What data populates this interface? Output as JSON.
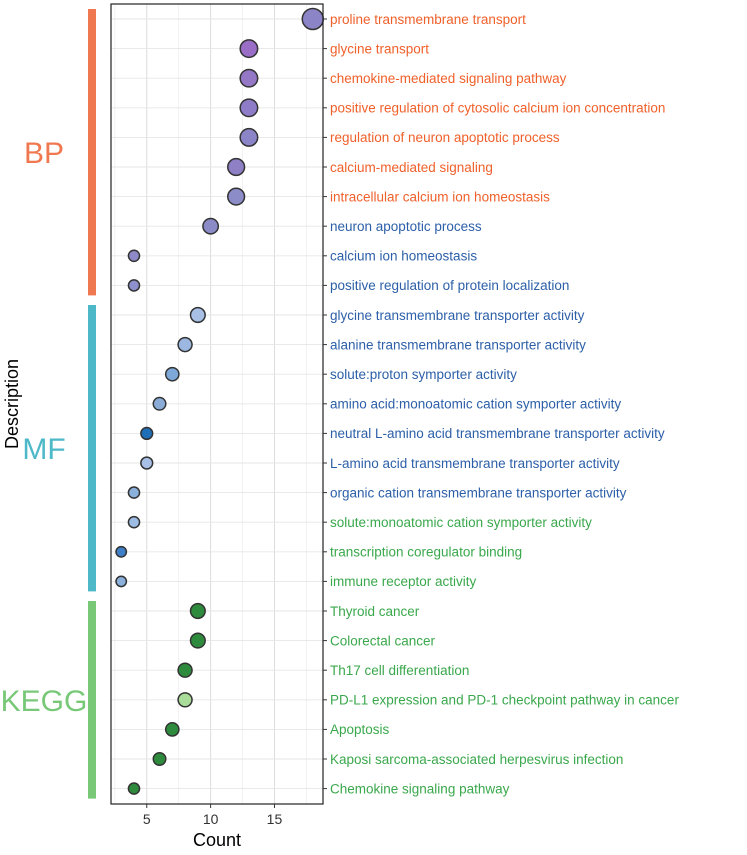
{
  "chart_data": {
    "type": "scatter",
    "title": "",
    "xlabel": "Count",
    "ylabel": "Description",
    "xlim": [
      2.2,
      18.8
    ],
    "xticks": [
      5,
      10,
      15
    ],
    "grid": true,
    "groups": [
      {
        "name": "BP",
        "color": "#f07850",
        "items": [
          {
            "term": "proline transmembrane transport",
            "count": 18,
            "label_color": "#f0602a",
            "point_color": "#8b85c8"
          },
          {
            "term": "glycine transport",
            "count": 13,
            "label_color": "#f0602a",
            "point_color": "#9a6ec6"
          },
          {
            "term": "chemokine-mediated signaling pathway",
            "count": 13,
            "label_color": "#f0602a",
            "point_color": "#9478c6"
          },
          {
            "term": "positive regulation of cytosolic calcium ion concentration",
            "count": 13,
            "label_color": "#f0602a",
            "point_color": "#8f7cc8"
          },
          {
            "term": "regulation of neuron apoptotic process",
            "count": 13,
            "label_color": "#f0602a",
            "point_color": "#8b85c8"
          },
          {
            "term": "calcium-mediated signaling",
            "count": 12,
            "label_color": "#f0602a",
            "point_color": "#8f80c6"
          },
          {
            "term": "intracellular calcium ion homeostasis",
            "count": 12,
            "label_color": "#f0602a",
            "point_color": "#8c8cc8"
          },
          {
            "term": "neuron apoptotic process",
            "count": 10,
            "label_color": "#2c5fa8",
            "point_color": "#8b8bc8"
          },
          {
            "term": "calcium ion homeostasis",
            "count": 4,
            "label_color": "#2c5fa8",
            "point_color": "#8e8ac8"
          },
          {
            "term": "positive regulation of protein localization",
            "count": 4,
            "label_color": "#2c5fa8",
            "point_color": "#8d90cc"
          }
        ]
      },
      {
        "name": "MF",
        "color": "#4cb8c8",
        "items": [
          {
            "term": "glycine transmembrane transporter activity",
            "count": 9,
            "label_color": "#2c5fa8",
            "point_color": "#a8c0e6"
          },
          {
            "term": "alanine transmembrane transporter activity",
            "count": 8,
            "label_color": "#2c5fa8",
            "point_color": "#9cb8e0"
          },
          {
            "term": "solute:proton symporter activity",
            "count": 7,
            "label_color": "#2c5fa8",
            "point_color": "#7ea8d8"
          },
          {
            "term": "amino acid:monoatomic cation symporter activity",
            "count": 6,
            "label_color": "#2c5fa8",
            "point_color": "#8cacd8"
          },
          {
            "term": "neutral L-amino acid transmembrane transporter activity",
            "count": 5,
            "label_color": "#2c5fa8",
            "point_color": "#1f6fb8"
          },
          {
            "term": "L-amino acid transmembrane transporter activity",
            "count": 5,
            "label_color": "#2c5fa8",
            "point_color": "#a8c0e6"
          },
          {
            "term": "organic cation transmembrane transporter activity",
            "count": 4,
            "label_color": "#2c5fa8",
            "point_color": "#8cb0dc"
          },
          {
            "term": "solute:monoatomic cation symporter activity",
            "count": 4,
            "label_color": "#3aa84c",
            "point_color": "#9cbce4"
          },
          {
            "term": "transcription coregulator binding",
            "count": 3,
            "label_color": "#3aa84c",
            "point_color": "#3f7fc8"
          },
          {
            "term": "immune receptor activity",
            "count": 3,
            "label_color": "#3aa84c",
            "point_color": "#8cb0dc"
          }
        ]
      },
      {
        "name": "KEGG",
        "color": "#78c878",
        "items": [
          {
            "term": "Thyroid cancer",
            "count": 9,
            "label_color": "#3aa84c",
            "point_color": "#2e8b3e"
          },
          {
            "term": "Colorectal cancer",
            "count": 9,
            "label_color": "#3aa84c",
            "point_color": "#2e8b3e"
          },
          {
            "term": "Th17 cell differentiation",
            "count": 8,
            "label_color": "#3aa84c",
            "point_color": "#2e8b3e"
          },
          {
            "term": "PD-L1 expression and PD-1 checkpoint pathway in cancer",
            "count": 8,
            "label_color": "#3aa84c",
            "point_color": "#a8dc98"
          },
          {
            "term": "Apoptosis",
            "count": 7,
            "label_color": "#3aa84c",
            "point_color": "#2e8b3e"
          },
          {
            "term": "Kaposi sarcoma-associated herpesvirus infection",
            "count": 6,
            "label_color": "#3aa84c",
            "point_color": "#2e8b3e"
          },
          {
            "term": "Chemokine signaling pathway",
            "count": 4,
            "label_color": "#3aa84c",
            "point_color": "#2e8b3e"
          }
        ]
      }
    ]
  }
}
